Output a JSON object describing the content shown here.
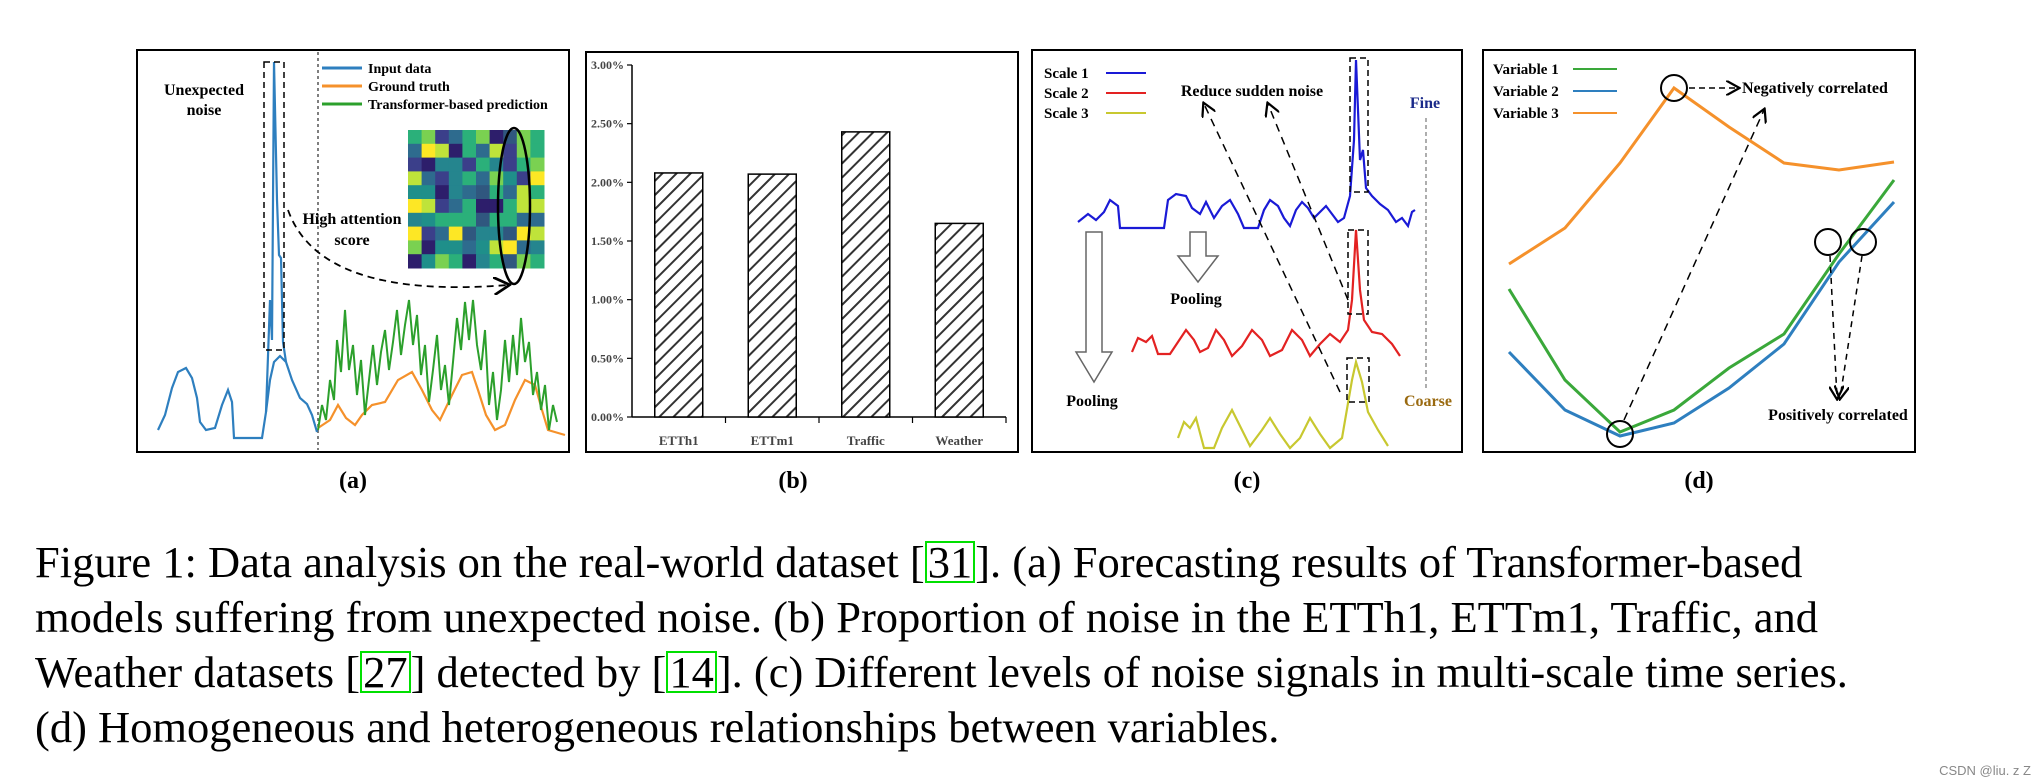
{
  "panel_a": {
    "label": "(a)",
    "legend": [
      "Input data",
      "Ground truth",
      "Transformer-based prediction"
    ],
    "legend_colors": [
      "#2e7fbf",
      "#f5912b",
      "#2ca02c"
    ],
    "note_noise": [
      "Unexpected",
      "noise"
    ],
    "note_attention": [
      "High attention",
      "score"
    ]
  },
  "panel_b": {
    "label": "(b)",
    "chart_data": {
      "type": "bar",
      "categories": [
        "ETTh1",
        "ETTm1",
        "Traffic",
        "Weather"
      ],
      "values": [
        2.08,
        2.07,
        2.43,
        1.65
      ],
      "yticks": [
        "0.00%",
        "0.50%",
        "1.00%",
        "1.50%",
        "2.00%",
        "2.50%",
        "3.00%"
      ],
      "ylim": [
        0,
        3.0
      ],
      "pattern": "diagonal-hatch"
    }
  },
  "panel_c": {
    "label": "(c)",
    "legend": [
      "Scale 1",
      "Scale 2",
      "Scale 3"
    ],
    "legend_colors": [
      "#1a1ad6",
      "#e32222",
      "#c8c830"
    ],
    "note_reduce": "Reduce sudden noise",
    "fine": "Fine",
    "coarse": "Coarse",
    "pool_1": "Pooling",
    "pool_2": "Pooling"
  },
  "panel_d": {
    "label": "(d)",
    "legend": [
      "Variable 1",
      "Variable 2",
      "Variable 3"
    ],
    "legend_colors": [
      "#3aa83a",
      "#2e7fbf",
      "#f5912b"
    ],
    "neg": "Negatively correlated",
    "pos": "Positively correlated"
  },
  "caption": {
    "l1a": "Figure 1: Data analysis on the real-world dataset  [",
    "c1": "31",
    "l1b": "]. (a) Forecasting results of Transformer-based",
    "l2": "models suffering from unexpected noise. (b) Proportion of noise in the ETTh1, ETTm1, Traffic, and",
    "l3a": "Weather datasets [",
    "c2": "27",
    "l3b": "] detected by [",
    "c3": "14",
    "l3c": "]. (c) Different levels of noise signals in multi-scale time series.",
    "l4": "(d) Homogeneous and heterogeneous relationships between variables."
  },
  "watermark": "CSDN @liu. z Z"
}
